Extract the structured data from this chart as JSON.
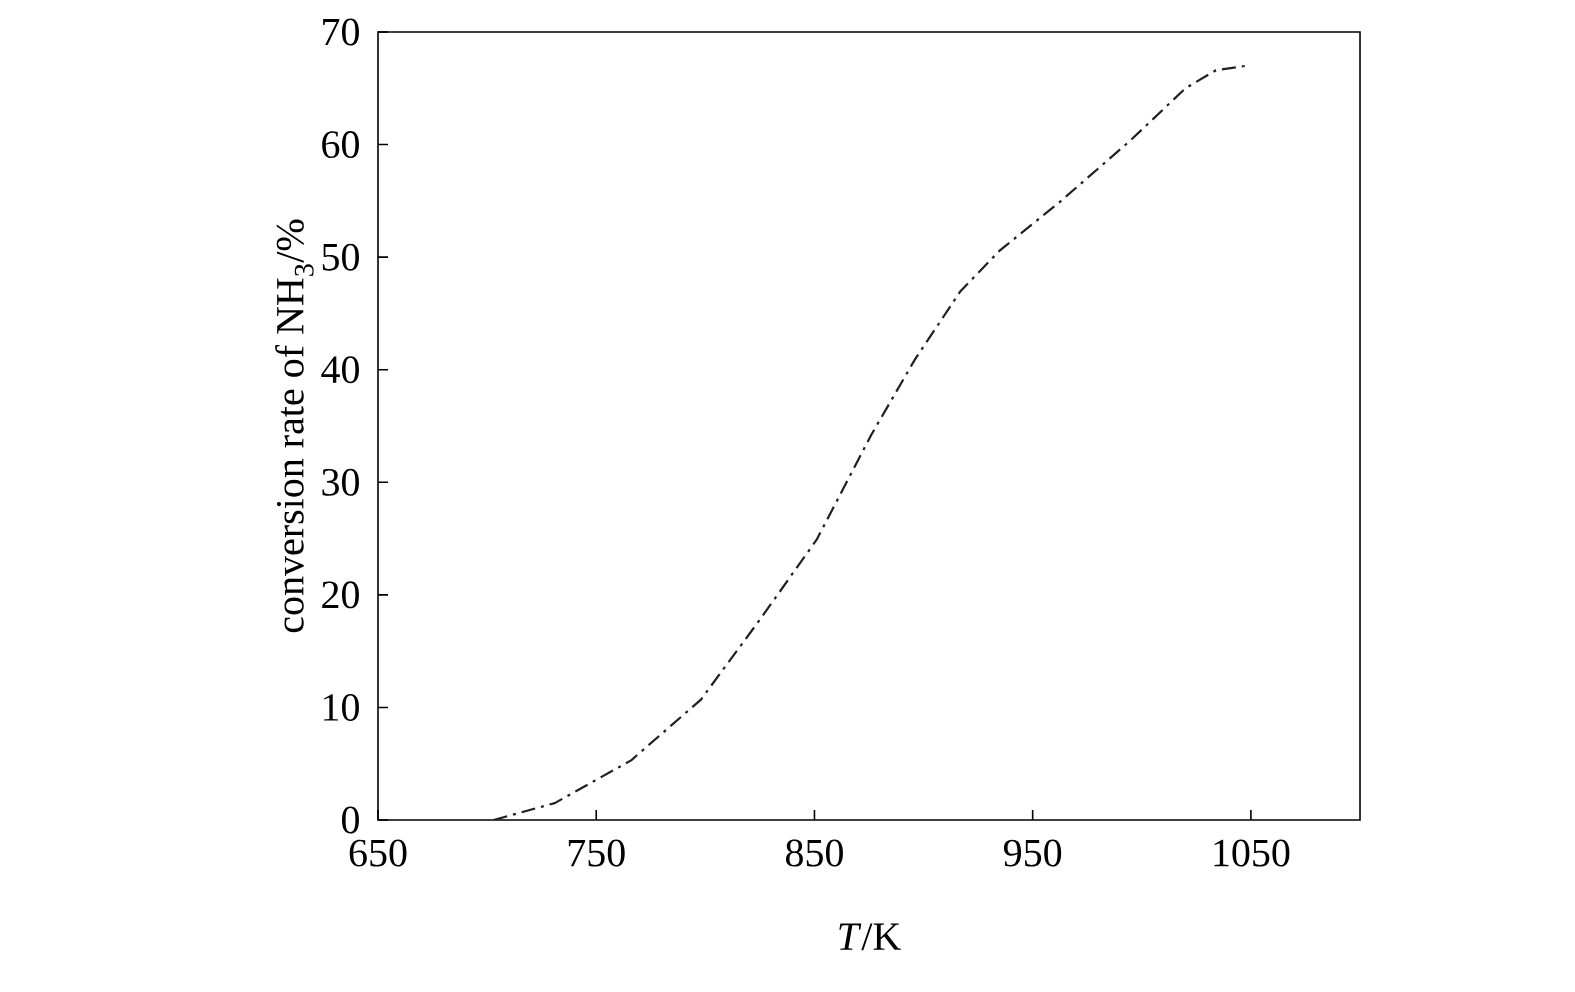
{
  "chart_data": {
    "type": "line",
    "xlabel": "*T*/K",
    "ylabel": "conversion rate of NH$_{3}$/%",
    "xlim": [
      650,
      1100
    ],
    "ylim": [
      0,
      70
    ],
    "xticks": [
      650,
      750,
      850,
      950,
      1050
    ],
    "yticks": [
      0,
      10,
      20,
      30,
      40,
      50,
      60,
      70
    ],
    "grid": false,
    "line_style": "dashdotted",
    "marker": "none",
    "series": [
      {
        "color": "#231f20",
        "x": [
          703,
          731,
          766,
          798,
          825,
          851,
          876,
          896,
          917,
          935,
          963,
          995,
          1020,
          1034,
          1048
        ],
        "values": [
          0,
          1.5,
          5.3,
          10.7,
          17.8,
          24.9,
          34.2,
          40.9,
          47,
          50.6,
          55,
          60.4,
          65,
          66.6,
          67
        ]
      }
    ]
  }
}
